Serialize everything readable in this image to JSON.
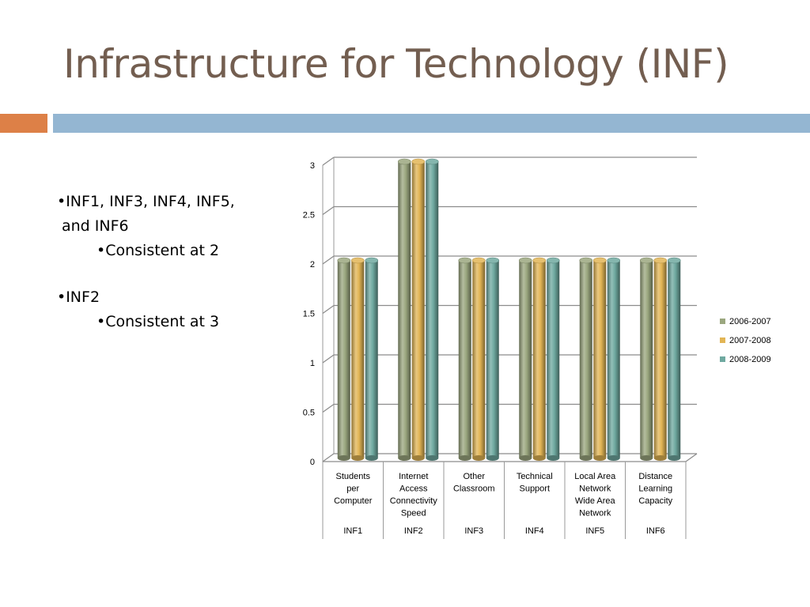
{
  "slide": {
    "title": "Infrastructure for Technology (INF)",
    "accent_orange": "#dd8047",
    "accent_blue": "#94b6d2",
    "title_color": "#735e50"
  },
  "bullets": {
    "b1_line1": "•INF1, INF3, INF4, INF5,",
    "b1_line2": "and INF6",
    "b1_sub": "•Consistent at 2",
    "b2": "•INF2",
    "b2_sub": "•Consistent at 3"
  },
  "chart_data": {
    "type": "bar",
    "style": "3d-cylinder",
    "categories": [
      {
        "lines": [
          "Students",
          "per",
          "Computer"
        ],
        "code": "INF1"
      },
      {
        "lines": [
          "Internet",
          "Access",
          "Connectivity",
          "Speed"
        ],
        "code": "INF2"
      },
      {
        "lines": [
          "Other",
          "Classroom"
        ],
        "code": "INF3"
      },
      {
        "lines": [
          "Technical",
          "Support"
        ],
        "code": "INF4"
      },
      {
        "lines": [
          "Local Area",
          "Network",
          "Wide Area",
          "Network"
        ],
        "code": "INF5"
      },
      {
        "lines": [
          "Distance",
          "Learning",
          "Capacity"
        ],
        "code": "INF6"
      }
    ],
    "series": [
      {
        "name": "2006-2007",
        "color": "#9ba77f",
        "values": [
          2,
          3,
          2,
          2,
          2,
          2
        ]
      },
      {
        "name": "2007-2008",
        "color": "#e2b555",
        "values": [
          2,
          3,
          2,
          2,
          2,
          2
        ]
      },
      {
        "name": "2008-2009",
        "color": "#6fa9a0",
        "values": [
          2,
          3,
          2,
          2,
          2,
          2
        ]
      }
    ],
    "ylim": [
      0,
      3
    ],
    "yticks": [
      "0",
      "0.5",
      "1",
      "1.5",
      "2",
      "2.5",
      "3"
    ],
    "grid": true,
    "legend_position": "right"
  }
}
